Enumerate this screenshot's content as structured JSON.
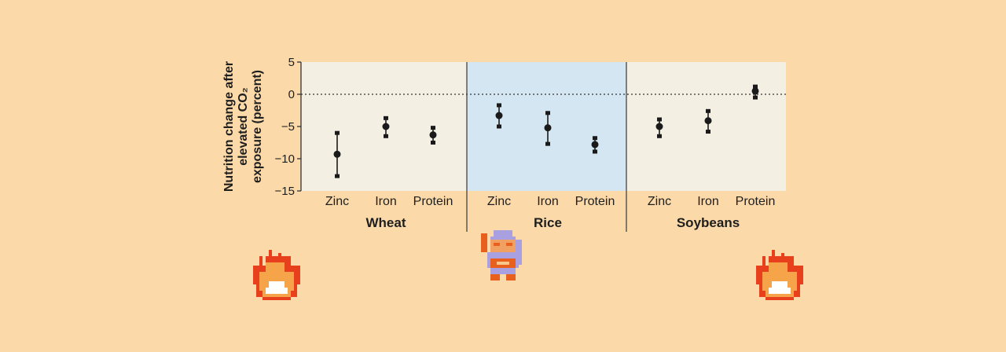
{
  "chart_data": {
    "type": "scatter",
    "ylabel_lines": [
      "Nutrition change after",
      "elevated CO₂",
      "exposure (percent)"
    ],
    "ylim": [
      -15,
      5
    ],
    "yticks": [
      5,
      0,
      -5,
      -10,
      -15
    ],
    "ytick_labels": [
      "5",
      "0",
      "−5",
      "−10",
      "−15"
    ],
    "reference_line": 0,
    "colors": {
      "page_background": "#fcd9a8",
      "panel_plain": "#f3efe3",
      "panel_highlight": "#d3e6f2",
      "marker": "#1a1a1a"
    },
    "groups": [
      {
        "name": "Wheat",
        "highlight": false,
        "points": [
          {
            "label": "Zinc",
            "value": -9.3,
            "low": -12.7,
            "high": -6.0
          },
          {
            "label": "Iron",
            "value": -5.0,
            "low": -6.5,
            "high": -3.7
          },
          {
            "label": "Protein",
            "value": -6.3,
            "low": -7.5,
            "high": -5.2
          }
        ]
      },
      {
        "name": "Rice",
        "highlight": true,
        "points": [
          {
            "label": "Zinc",
            "value": -3.3,
            "low": -5.0,
            "high": -1.7
          },
          {
            "label": "Iron",
            "value": -5.2,
            "low": -7.7,
            "high": -2.9
          },
          {
            "label": "Protein",
            "value": -7.8,
            "low": -8.9,
            "high": -6.8
          }
        ]
      },
      {
        "name": "Soybeans",
        "highlight": false,
        "points": [
          {
            "label": "Zinc",
            "value": -5.0,
            "low": -6.5,
            "high": -3.9
          },
          {
            "label": "Iron",
            "value": -4.1,
            "low": -5.8,
            "high": -2.6
          },
          {
            "label": "Protein",
            "value": 0.5,
            "low": -0.5,
            "high": 1.2
          }
        ]
      }
    ]
  },
  "decorations": {
    "left_sprite": "fire-sprite",
    "center_sprite": "knight-sprite",
    "right_sprite": "fire-sprite"
  }
}
